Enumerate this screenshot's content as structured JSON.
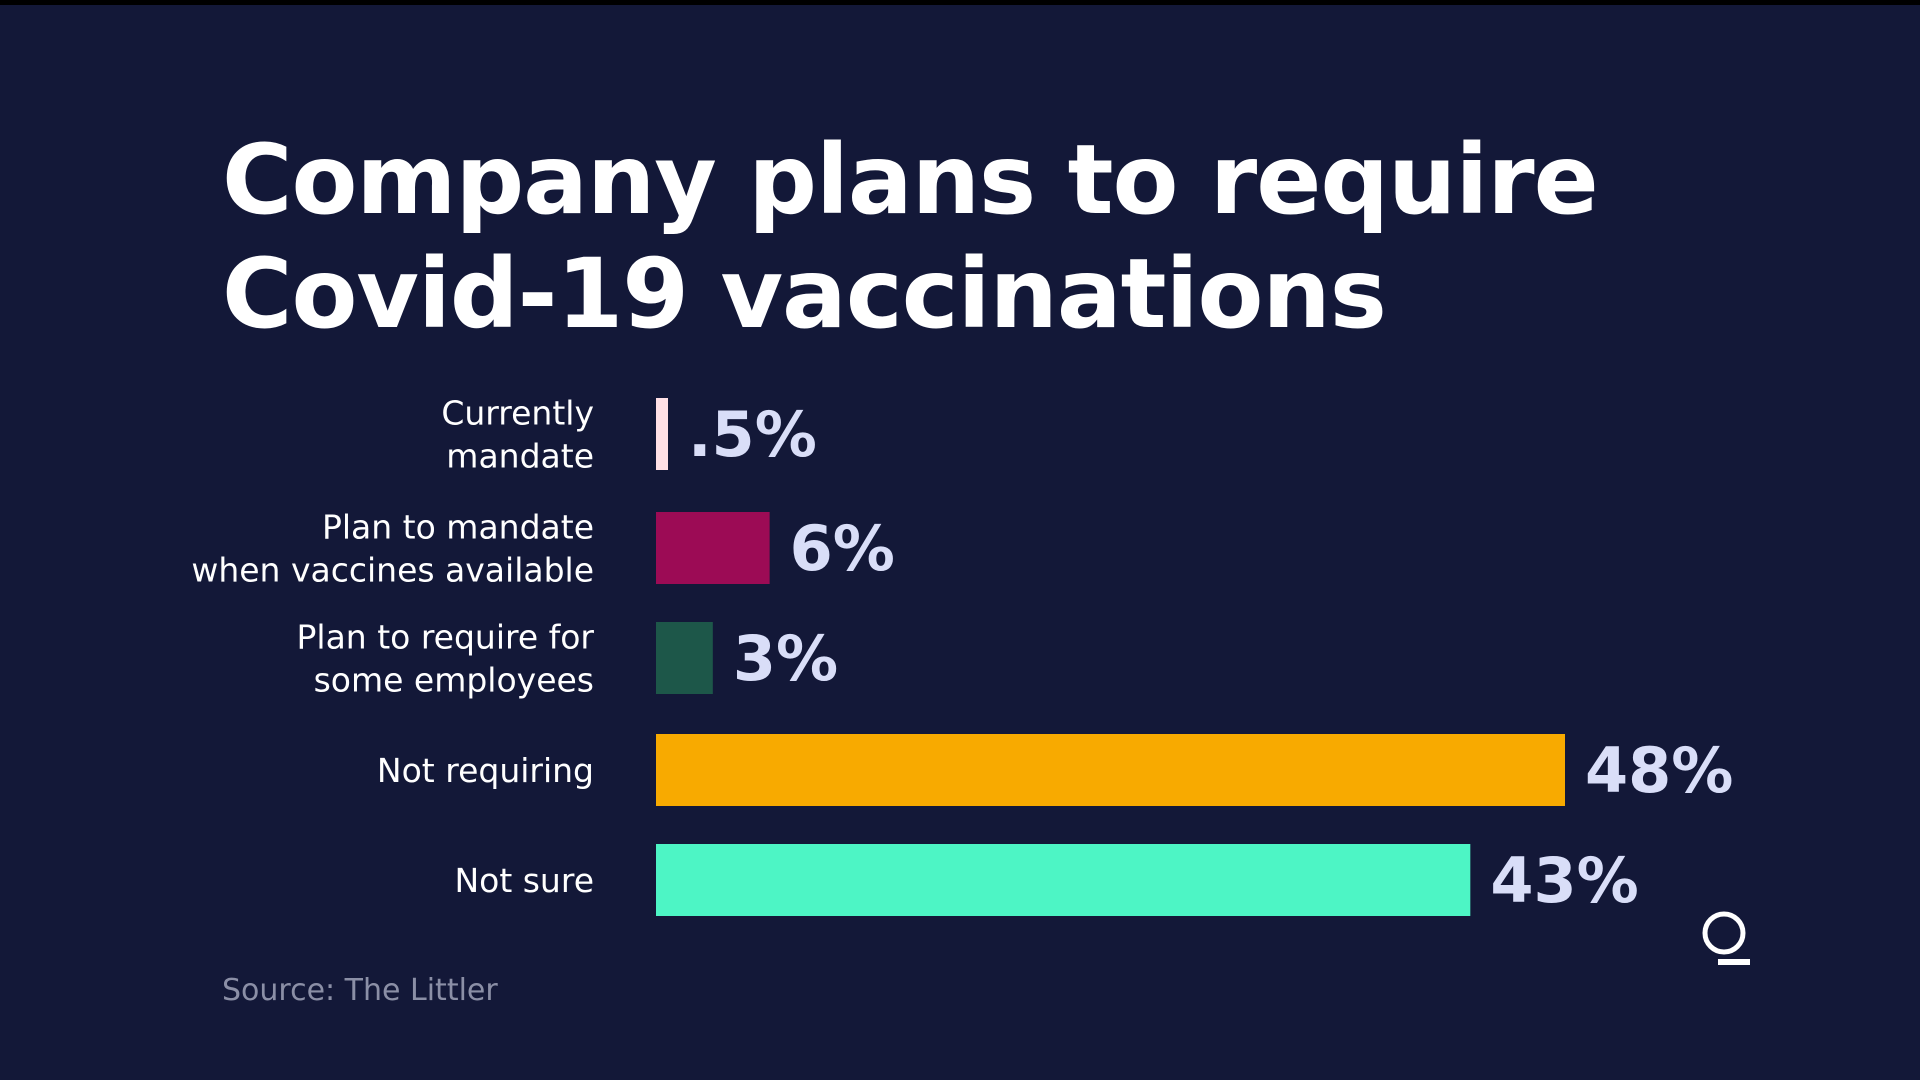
{
  "title_lines": [
    "Company plans to require",
    "Covid-19 vaccinations"
  ],
  "source": "Source: The Littler",
  "logo_icon": "quartz-q-icon",
  "chart_data": {
    "type": "bar",
    "orientation": "horizontal",
    "title": "Company plans to require Covid-19 vaccinations",
    "categories": [
      [
        "Currently",
        "mandate"
      ],
      [
        "Plan to mandate",
        "when vaccines available"
      ],
      [
        "Plan to require for",
        "some employees"
      ],
      [
        "Not requiring"
      ],
      [
        "Not sure"
      ]
    ],
    "values": [
      0.5,
      6,
      3,
      48,
      43
    ],
    "value_labels": [
      ".5%",
      "6%",
      "3%",
      "48%",
      "43%"
    ],
    "colors": [
      "#ffe0e6",
      "#9c0b55",
      "#1d5749",
      "#f8aa00",
      "#4df5c5"
    ],
    "unit": "%",
    "xlim": [
      0,
      48
    ],
    "grid": false,
    "legend": "none"
  }
}
